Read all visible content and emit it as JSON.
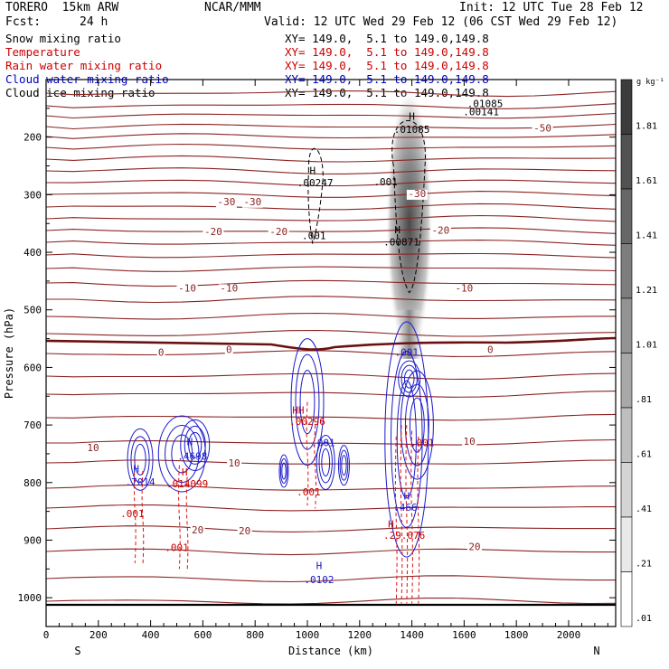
{
  "header": {
    "model": "TORERO  15km ARW",
    "org": "NCAR/MMM",
    "init": "Init: 12 UTC Tue 28 Feb 12",
    "fcst_label": "Fcst:",
    "fcst_value": "24 h",
    "valid": "Valid: 12 UTC Wed 29 Feb 12 (06 CST Wed 29 Feb 12)"
  },
  "legend": [
    {
      "name": "Snow mixing ratio",
      "color": "#000000",
      "xy": "XY= 149.0,  5.1 to 149.0,149.8"
    },
    {
      "name": "Temperature",
      "color": "#cc0000",
      "xy": "XY= 149.0,  5.1 to 149.0,149.8"
    },
    {
      "name": "Rain water mixing ratio",
      "color": "#cc0000",
      "xy": "XY= 149.0,  5.1 to 149.0,149.8"
    },
    {
      "name": "Cloud water mixing ratio",
      "color": "#0000cc",
      "xy": "XY= 149.0,  5.1 to 149.0,149.8"
    },
    {
      "name": "Cloud ice mixing ratio",
      "color": "#000000",
      "xy": "XY= 149.0,  5.1 to 149.0,149.8"
    }
  ],
  "chart_data": {
    "type": "cross-section",
    "xlabel": "Distance (km)",
    "ylabel": "Pressure (hPa)",
    "xlim": [
      0,
      2180
    ],
    "ylim": [
      1050,
      100
    ],
    "x_ticks": [
      "0",
      "200",
      "400",
      "600",
      "800",
      "1000",
      "1200",
      "1400",
      "1600",
      "1800",
      "2000"
    ],
    "y_ticks": [
      "200",
      "300",
      "400",
      "500",
      "600",
      "700",
      "800",
      "900",
      "1000"
    ],
    "x_end_labels": [
      "S",
      "N"
    ],
    "grid": false,
    "colorbar": {
      "unit": "g kg⁻¹",
      "ticks": [
        "1.81",
        "1.61",
        "1.41",
        "1.21",
        "1.01",
        ".81",
        ".61",
        ".41",
        ".21",
        ".01"
      ]
    },
    "temperature_contour_labels": [
      {
        "text": "-50",
        "x": 1900,
        "p": 190
      },
      {
        "text": "-30",
        "x": 690,
        "p": 318
      },
      {
        "text": "-30",
        "x": 790,
        "p": 318
      },
      {
        "text": "-30",
        "x": 1420,
        "p": 304
      },
      {
        "text": "-20",
        "x": 640,
        "p": 370
      },
      {
        "text": "-20",
        "x": 890,
        "p": 370
      },
      {
        "text": "-20",
        "x": 1510,
        "p": 368
      },
      {
        "text": "-10",
        "x": 540,
        "p": 468
      },
      {
        "text": "-10",
        "x": 700,
        "p": 468
      },
      {
        "text": "-10",
        "x": 1600,
        "p": 468
      },
      {
        "text": "0",
        "x": 440,
        "p": 580
      },
      {
        "text": "0",
        "x": 700,
        "p": 575
      },
      {
        "text": "0",
        "x": 1700,
        "p": 575
      },
      {
        "text": "10",
        "x": 180,
        "p": 745
      },
      {
        "text": "10",
        "x": 720,
        "p": 772
      },
      {
        "text": "10",
        "x": 1620,
        "p": 734
      },
      {
        "text": "20",
        "x": 580,
        "p": 888
      },
      {
        "text": "20",
        "x": 760,
        "p": 890
      },
      {
        "text": "20",
        "x": 1640,
        "p": 917
      }
    ],
    "snow_labels": [
      {
        "text": "H",
        "x": 1400,
        "p": 170
      },
      {
        "text": ".01085",
        "x": 1400,
        "p": 193
      },
      {
        "text": ".001",
        "x": 1300,
        "p": 284
      },
      {
        "text": "H",
        "x": 1345,
        "p": 367
      },
      {
        "text": ".00871",
        "x": 1360,
        "p": 388
      },
      {
        "text": ".01085",
        "x": 1680,
        "p": 148
      },
      {
        "text": ".00141",
        "x": 1665,
        "p": 162
      }
    ],
    "ice_labels": [
      {
        "text": "H",
        "x": 1020,
        "p": 264
      },
      {
        "text": ".00247",
        "x": 1030,
        "p": 285
      },
      {
        "text": ".001",
        "x": 1025,
        "p": 377
      }
    ],
    "cloud_water_labels": [
      {
        "text": ".001",
        "x": 1380,
        "p": 580
      },
      {
        "text": ".001",
        "x": 1060,
        "p": 737
      },
      {
        "text": "H",
        "x": 550,
        "p": 735
      },
      {
        "text": ".4698",
        "x": 560,
        "p": 760
      },
      {
        "text": "H",
        "x": 345,
        "p": 782
      },
      {
        "text": ".7014",
        "x": 360,
        "p": 805
      },
      {
        "text": "H",
        "x": 1380,
        "p": 829
      },
      {
        "text": ".466",
        "x": 1375,
        "p": 849
      },
      {
        "text": "H",
        "x": 1045,
        "p": 950
      },
      {
        "text": ".0102",
        "x": 1045,
        "p": 975
      }
    ],
    "rain_labels": [
      {
        "text": "HH",
        "x": 965,
        "p": 680
      },
      {
        "text": ".00296",
        "x": 1000,
        "p": 700
      },
      {
        "text": "H",
        "x": 530,
        "p": 788
      },
      {
        "text": ".014099",
        "x": 540,
        "p": 808
      },
      {
        "text": ".001",
        "x": 1440,
        "p": 737
      },
      {
        "text": ".001",
        "x": 1005,
        "p": 822
      },
      {
        "text": ".001",
        "x": 330,
        "p": 860
      },
      {
        "text": ".001",
        "x": 500,
        "p": 919
      },
      {
        "text": "H",
        "x": 1320,
        "p": 878
      },
      {
        "text": ".29",
        "x": 1325,
        "p": 898
      },
      {
        "text": ".076",
        "x": 1405,
        "p": 898
      }
    ]
  }
}
